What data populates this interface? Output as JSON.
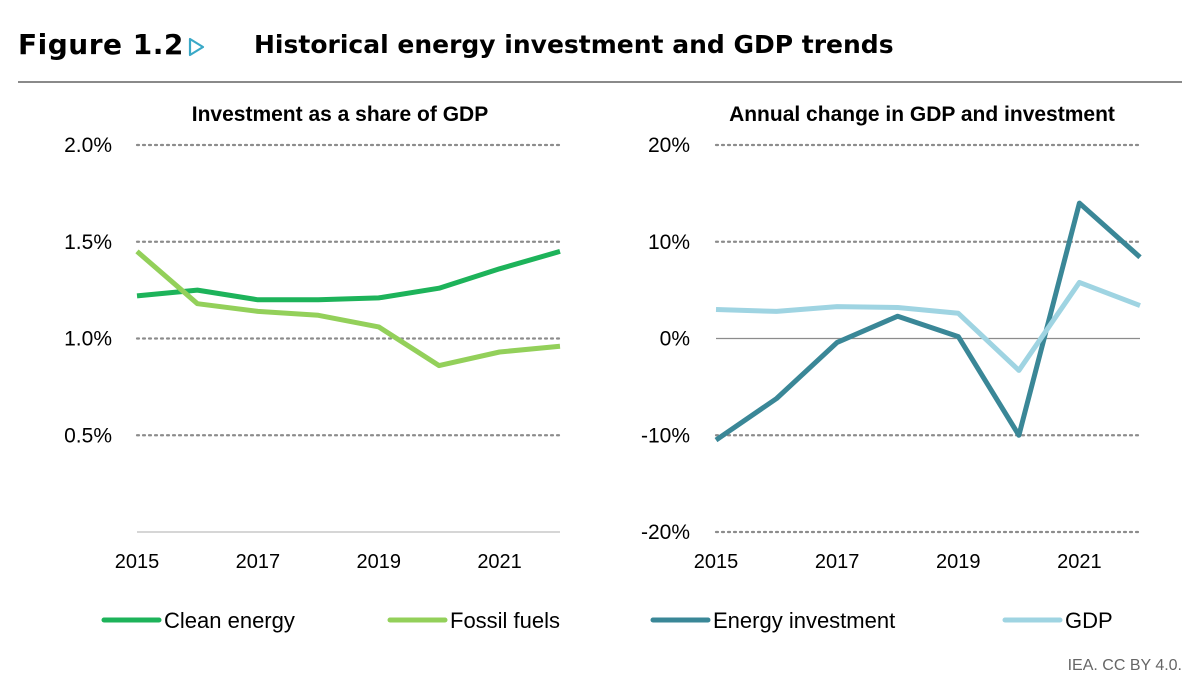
{
  "figure": {
    "label": "Figure 1.2",
    "arrow_icon": "triangle-right-icon",
    "title": "Historical energy investment and GDP trends",
    "credit": "IEA. CC BY 4.0."
  },
  "colors": {
    "clean_energy": "#1db35a",
    "fossil_fuels": "#93d05a",
    "energy_investment": "#3a8797",
    "gdp": "#9fd4e2",
    "grid": "#8c8c8c",
    "arrow": "#3aa9c7"
  },
  "chart_data": [
    {
      "type": "line",
      "title": "Investment as a share of GDP",
      "x": [
        2015,
        2016,
        2017,
        2018,
        2019,
        2020,
        2021,
        2022
      ],
      "xticks": [
        "2015",
        "2017",
        "2019",
        "2021"
      ],
      "xlim": [
        2015,
        2022
      ],
      "ylim": [
        0,
        2.0
      ],
      "yticks": [
        {
          "value": 0.5,
          "label": "0.5%"
        },
        {
          "value": 1.0,
          "label": "1.0%"
        },
        {
          "value": 1.5,
          "label": "1.5%"
        },
        {
          "value": 2.0,
          "label": "2.0%"
        }
      ],
      "grid": "horizontal dotted",
      "series": [
        {
          "name": "Clean energy",
          "color_key": "clean_energy",
          "values": [
            1.22,
            1.25,
            1.2,
            1.2,
            1.21,
            1.26,
            1.36,
            1.45
          ]
        },
        {
          "name": "Fossil fuels",
          "color_key": "fossil_fuels",
          "values": [
            1.45,
            1.18,
            1.14,
            1.12,
            1.06,
            0.86,
            0.93,
            0.96
          ]
        }
      ],
      "legend": "bottom"
    },
    {
      "type": "line",
      "title": "Annual change in GDP and investment",
      "x": [
        2015,
        2016,
        2017,
        2018,
        2019,
        2020,
        2021,
        2022
      ],
      "xticks": [
        "2015",
        "2017",
        "2019",
        "2021"
      ],
      "xlim": [
        2015,
        2022
      ],
      "ylim": [
        -20,
        20
      ],
      "yticks": [
        {
          "value": -20,
          "label": "-20%"
        },
        {
          "value": -10,
          "label": "-10%"
        },
        {
          "value": 0,
          "label": "0%"
        },
        {
          "value": 10,
          "label": "10%"
        },
        {
          "value": 20,
          "label": "20%"
        }
      ],
      "grid": "horizontal dotted, solid zero line",
      "series": [
        {
          "name": "Energy investment",
          "color_key": "energy_investment",
          "values": [
            -10.5,
            -6.2,
            -0.4,
            2.3,
            0.2,
            -10.0,
            14.0,
            8.4
          ]
        },
        {
          "name": "GDP",
          "color_key": "gdp",
          "values": [
            3.0,
            2.8,
            3.3,
            3.2,
            2.6,
            -3.3,
            5.8,
            3.4
          ]
        }
      ],
      "legend": "bottom"
    }
  ]
}
